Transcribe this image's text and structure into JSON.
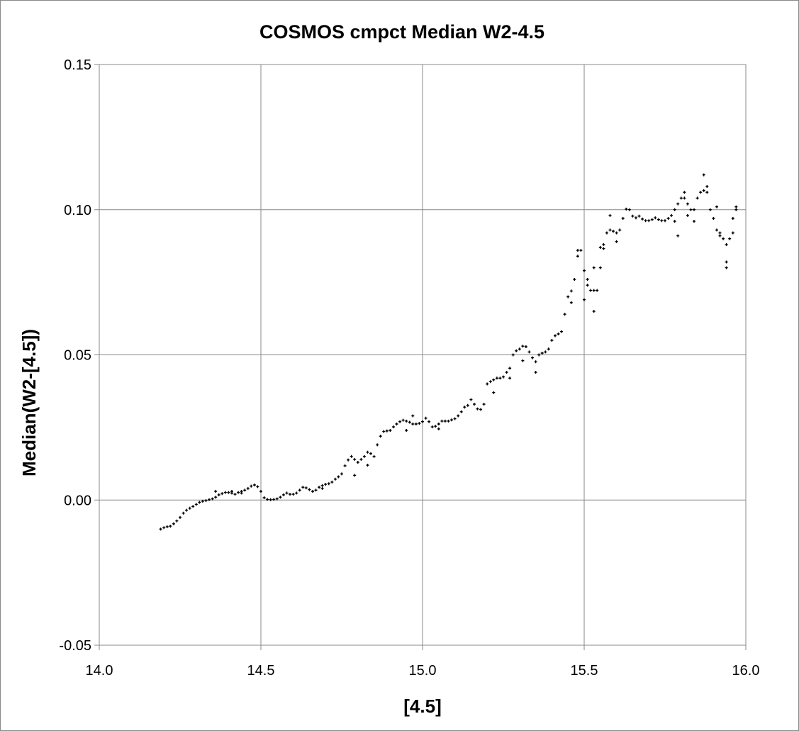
{
  "chart_data": {
    "type": "scatter",
    "title": "COSMOS cmpct  Median W2-4.5",
    "xlabel": "[4.5]",
    "ylabel": "Median(W2-[4.5])",
    "xlim": [
      14.0,
      16.0
    ],
    "ylim": [
      -0.05,
      0.15
    ],
    "x_ticks": [
      "14.0",
      "14.5",
      "15.0",
      "15.5",
      "16.0"
    ],
    "y_ticks": [
      "-0.05",
      "0.00",
      "0.05",
      "0.10",
      "0.15"
    ],
    "grid": true,
    "legend": "none",
    "marker": "plus",
    "marker_color": "#000000",
    "series": [
      {
        "points": [
          [
            14.19,
            -0.01
          ],
          [
            14.2,
            -0.0095
          ],
          [
            14.21,
            -0.0092
          ],
          [
            14.22,
            -0.009
          ],
          [
            14.23,
            -0.0082
          ],
          [
            14.24,
            -0.0072
          ],
          [
            14.25,
            -0.006
          ],
          [
            14.26,
            -0.0045
          ],
          [
            14.27,
            -0.0035
          ],
          [
            14.28,
            -0.0028
          ],
          [
            14.29,
            -0.0022
          ],
          [
            14.3,
            -0.0015
          ],
          [
            14.31,
            -0.0008
          ],
          [
            14.32,
            -0.0004
          ],
          [
            14.33,
            -0.0002
          ],
          [
            14.34,
            0.0001
          ],
          [
            14.35,
            0.0004
          ],
          [
            14.36,
            0.001
          ],
          [
            14.37,
            0.0018
          ],
          [
            14.38,
            0.0022
          ],
          [
            14.39,
            0.0026
          ],
          [
            14.4,
            0.0026
          ],
          [
            14.41,
            0.0024
          ],
          [
            14.42,
            0.002
          ],
          [
            14.43,
            0.0026
          ],
          [
            14.44,
            0.003
          ],
          [
            14.45,
            0.0034
          ],
          [
            14.46,
            0.004
          ],
          [
            14.47,
            0.0048
          ],
          [
            14.48,
            0.0052
          ],
          [
            14.49,
            0.0046
          ],
          [
            14.5,
            0.003
          ],
          [
            14.51,
            0.0008
          ],
          [
            14.52,
            0.0002
          ],
          [
            14.53,
            0.0001
          ],
          [
            14.54,
            0.0002
          ],
          [
            14.55,
            0.0004
          ],
          [
            14.56,
            0.001
          ],
          [
            14.57,
            0.0018
          ],
          [
            14.58,
            0.0024
          ],
          [
            14.59,
            0.002
          ],
          [
            14.6,
            0.002
          ],
          [
            14.61,
            0.0024
          ],
          [
            14.62,
            0.0034
          ],
          [
            14.63,
            0.0044
          ],
          [
            14.64,
            0.0042
          ],
          [
            14.65,
            0.0036
          ],
          [
            14.66,
            0.003
          ],
          [
            14.67,
            0.0034
          ],
          [
            14.68,
            0.0044
          ],
          [
            14.69,
            0.005
          ],
          [
            14.7,
            0.0054
          ],
          [
            14.71,
            0.0056
          ],
          [
            14.72,
            0.0062
          ],
          [
            14.73,
            0.0072
          ],
          [
            14.74,
            0.008
          ],
          [
            14.75,
            0.009
          ],
          [
            14.76,
            0.0118
          ],
          [
            14.77,
            0.0138
          ],
          [
            14.78,
            0.015
          ],
          [
            14.79,
            0.014
          ],
          [
            14.8,
            0.013
          ],
          [
            14.81,
            0.014
          ],
          [
            14.82,
            0.015
          ],
          [
            14.83,
            0.0165
          ],
          [
            14.84,
            0.016
          ],
          [
            14.85,
            0.015
          ],
          [
            14.86,
            0.019
          ],
          [
            14.87,
            0.022
          ],
          [
            14.88,
            0.0236
          ],
          [
            14.89,
            0.0238
          ],
          [
            14.9,
            0.024
          ],
          [
            14.91,
            0.0252
          ],
          [
            14.92,
            0.0262
          ],
          [
            14.93,
            0.027
          ],
          [
            14.94,
            0.0275
          ],
          [
            14.95,
            0.0272
          ],
          [
            14.96,
            0.0268
          ],
          [
            14.97,
            0.0262
          ],
          [
            14.98,
            0.0262
          ],
          [
            14.99,
            0.0264
          ],
          [
            15.0,
            0.027
          ],
          [
            15.01,
            0.0282
          ],
          [
            15.02,
            0.027
          ],
          [
            15.03,
            0.0252
          ],
          [
            15.04,
            0.0254
          ],
          [
            15.05,
            0.0262
          ],
          [
            15.06,
            0.0272
          ],
          [
            15.07,
            0.0272
          ],
          [
            15.08,
            0.0272
          ],
          [
            15.09,
            0.0276
          ],
          [
            15.1,
            0.028
          ],
          [
            15.11,
            0.029
          ],
          [
            15.12,
            0.0304
          ],
          [
            15.13,
            0.032
          ],
          [
            15.14,
            0.0326
          ],
          [
            15.15,
            0.0346
          ],
          [
            15.16,
            0.033
          ],
          [
            15.17,
            0.0314
          ],
          [
            15.18,
            0.0312
          ],
          [
            15.19,
            0.033
          ],
          [
            15.2,
            0.04
          ],
          [
            15.21,
            0.0408
          ],
          [
            15.22,
            0.0414
          ],
          [
            15.23,
            0.042
          ],
          [
            15.24,
            0.042
          ],
          [
            15.25,
            0.0424
          ],
          [
            15.26,
            0.044
          ],
          [
            15.27,
            0.0454
          ],
          [
            15.28,
            0.05
          ],
          [
            15.29,
            0.0514
          ],
          [
            15.3,
            0.052
          ],
          [
            15.31,
            0.053
          ],
          [
            15.32,
            0.0528
          ],
          [
            15.33,
            0.051
          ],
          [
            15.34,
            0.049
          ],
          [
            15.35,
            0.0476
          ],
          [
            15.36,
            0.05
          ],
          [
            15.37,
            0.0506
          ],
          [
            15.38,
            0.051
          ],
          [
            15.39,
            0.052
          ],
          [
            15.4,
            0.055
          ],
          [
            15.41,
            0.0566
          ],
          [
            15.42,
            0.0572
          ],
          [
            15.43,
            0.058
          ],
          [
            15.44,
            0.064
          ],
          [
            15.45,
            0.07
          ],
          [
            15.46,
            0.072
          ],
          [
            15.47,
            0.076
          ],
          [
            15.48,
            0.084
          ],
          [
            15.49,
            0.086
          ],
          [
            15.5,
            0.079
          ],
          [
            15.51,
            0.074
          ],
          [
            15.52,
            0.0722
          ],
          [
            15.53,
            0.0722
          ],
          [
            15.54,
            0.0722
          ],
          [
            15.55,
            0.08
          ],
          [
            15.56,
            0.0866
          ],
          [
            15.57,
            0.092
          ],
          [
            15.58,
            0.093
          ],
          [
            15.59,
            0.0926
          ],
          [
            15.6,
            0.092
          ],
          [
            15.61,
            0.093
          ],
          [
            15.62,
            0.097
          ],
          [
            15.63,
            0.1002
          ],
          [
            15.64,
            0.1
          ],
          [
            15.65,
            0.0978
          ],
          [
            15.66,
            0.0972
          ],
          [
            15.67,
            0.0978
          ],
          [
            15.68,
            0.0968
          ],
          [
            15.69,
            0.0962
          ],
          [
            15.7,
            0.0962
          ],
          [
            15.71,
            0.0966
          ],
          [
            15.72,
            0.0972
          ],
          [
            15.73,
            0.0966
          ],
          [
            15.74,
            0.0962
          ],
          [
            15.75,
            0.0962
          ],
          [
            15.76,
            0.097
          ],
          [
            15.77,
            0.098
          ],
          [
            15.78,
            0.1
          ],
          [
            15.79,
            0.102
          ],
          [
            15.8,
            0.104
          ],
          [
            15.81,
            0.104
          ],
          [
            15.82,
            0.102
          ],
          [
            15.83,
            0.1
          ],
          [
            15.84,
            0.1
          ],
          [
            15.85,
            0.104
          ],
          [
            15.86,
            0.106
          ],
          [
            15.87,
            0.1066
          ],
          [
            15.88,
            0.106
          ],
          [
            15.89,
            0.1
          ],
          [
            15.9,
            0.097
          ],
          [
            15.91,
            0.093
          ],
          [
            15.92,
            0.091
          ],
          [
            15.93,
            0.09
          ],
          [
            15.94,
            0.088
          ],
          [
            15.95,
            0.09
          ],
          [
            15.96,
            0.097
          ],
          [
            15.97,
            0.1
          ],
          [
            14.41,
            0.003
          ],
          [
            14.44,
            0.0024
          ],
          [
            14.83,
            0.012
          ],
          [
            14.79,
            0.0085
          ],
          [
            15.05,
            0.0245
          ],
          [
            15.31,
            0.048
          ],
          [
            15.35,
            0.044
          ],
          [
            15.46,
            0.068
          ],
          [
            15.48,
            0.086
          ],
          [
            15.5,
            0.069
          ],
          [
            15.51,
            0.076
          ],
          [
            15.53,
            0.065
          ],
          [
            15.56,
            0.088
          ],
          [
            15.58,
            0.098
          ],
          [
            15.6,
            0.089
          ],
          [
            15.78,
            0.096
          ],
          [
            15.79,
            0.091
          ],
          [
            15.82,
            0.098
          ],
          [
            15.87,
            0.112
          ],
          [
            15.88,
            0.108
          ],
          [
            15.91,
            0.101
          ],
          [
            15.94,
            0.082
          ],
          [
            15.94,
            0.08
          ],
          [
            15.96,
            0.092
          ],
          [
            15.97,
            0.101
          ],
          [
            15.53,
            0.08
          ],
          [
            15.55,
            0.087
          ],
          [
            15.81,
            0.106
          ],
          [
            15.84,
            0.096
          ],
          [
            15.92,
            0.092
          ],
          [
            15.22,
            0.037
          ],
          [
            15.27,
            0.042
          ],
          [
            14.95,
            0.024
          ],
          [
            14.97,
            0.029
          ],
          [
            14.69,
            0.004
          ],
          [
            14.36,
            0.003
          ]
        ]
      }
    ]
  }
}
